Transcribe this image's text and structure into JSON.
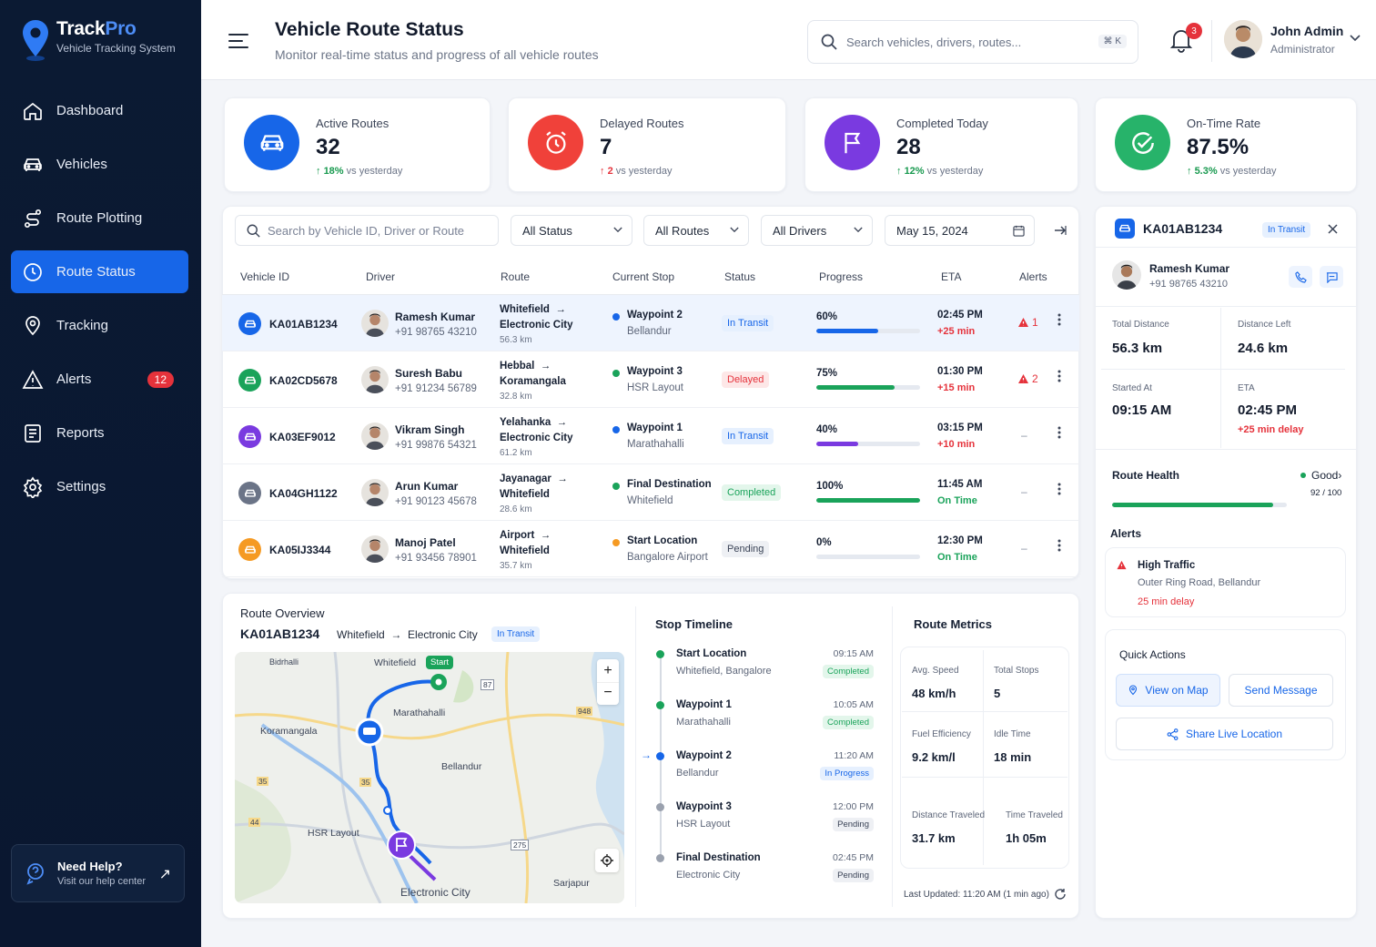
{
  "brand": {
    "name_a": "Track",
    "name_b": "Pro",
    "subtitle": "Vehicle Tracking System"
  },
  "nav": [
    {
      "label": "Dashboard",
      "icon": "home-icon"
    },
    {
      "label": "Vehicles",
      "icon": "car-icon"
    },
    {
      "label": "Route Plotting",
      "icon": "route-icon"
    },
    {
      "label": "Route Status",
      "icon": "clock-icon",
      "active": true
    },
    {
      "label": "Tracking",
      "icon": "location-icon"
    },
    {
      "label": "Alerts",
      "icon": "warning-icon",
      "badge": "12"
    },
    {
      "label": "Reports",
      "icon": "report-icon"
    },
    {
      "label": "Settings",
      "icon": "gear-icon"
    }
  ],
  "help": {
    "title": "Need Help?",
    "subtitle": "Visit our help center"
  },
  "header": {
    "title": "Vehicle Route Status",
    "subtitle": "Monitor real-time status and progress of all vehicle routes",
    "search_placeholder": "Search vehicles, drivers, routes...",
    "shortcut": "⌘ K",
    "notifications": "3"
  },
  "user": {
    "name": "John Admin",
    "role": "Administrator"
  },
  "stats": [
    {
      "label": "Active Routes",
      "value": "32",
      "trend": "18%",
      "trend_suffix": "vs yesterday",
      "color": "#1766e8"
    },
    {
      "label": "Delayed Routes",
      "value": "7",
      "trend": "2",
      "trend_suffix": "vs yesterday",
      "color": "#f0413a"
    },
    {
      "label": "Completed Today",
      "value": "28",
      "trend": "12%",
      "trend_suffix": "vs yesterday",
      "color": "#7a3ae0"
    },
    {
      "label": "On-Time Rate",
      "value": "87.5%",
      "trend": "5.3%",
      "trend_suffix": "vs yesterday",
      "color": "#27b36a"
    }
  ],
  "filters": {
    "search_placeholder": "Search by Vehicle ID, Driver or Route",
    "status": "All Status",
    "routes": "All Routes",
    "drivers": "All Drivers",
    "date": "May 15, 2024"
  },
  "columns": [
    "Vehicle ID",
    "Driver",
    "Route",
    "Current Stop",
    "Status",
    "Progress",
    "ETA",
    "Alerts"
  ],
  "rows": [
    {
      "id": "KA01AB1234",
      "color": "#1766e8",
      "driver": "Ramesh Kumar",
      "phone": "+91 98765 43210",
      "from": "Whitefield",
      "to": "Electronic City",
      "dist": "56.3 km",
      "stop": "Waypoint 2",
      "stop_sub": "Bellandur",
      "stop_color": "#1766e8",
      "status": "In Transit",
      "status_type": "transit",
      "progress": "60%",
      "progress_value": 60,
      "bar_color": "#1766e8",
      "eta": "02:45 PM",
      "eta_delta": "+25 min",
      "eta_color": "#e5323b",
      "alert": "1"
    },
    {
      "id": "KA02CD5678",
      "color": "#1aa35a",
      "driver": "Suresh Babu",
      "phone": "+91 91234 56789",
      "from": "Hebbal",
      "to": "Koramangala",
      "dist": "32.8 km",
      "stop": "Waypoint 3",
      "stop_sub": "HSR Layout",
      "stop_color": "#1aa35a",
      "status": "Delayed",
      "status_type": "delayed",
      "progress": "75%",
      "progress_value": 75,
      "bar_color": "#1aa35a",
      "eta": "01:30 PM",
      "eta_delta": "+15 min",
      "eta_color": "#e5323b",
      "alert": "2"
    },
    {
      "id": "KA03EF9012",
      "color": "#7a3ae0",
      "driver": "Vikram Singh",
      "phone": "+91 99876 54321",
      "from": "Yelahanka",
      "to": "Electronic City",
      "dist": "61.2 km",
      "stop": "Waypoint 1",
      "stop_sub": "Marathahalli",
      "stop_color": "#1766e8",
      "status": "In Transit",
      "status_type": "transit",
      "progress": "40%",
      "progress_value": 40,
      "bar_color": "#7a3ae0",
      "eta": "03:15 PM",
      "eta_delta": "+10 min",
      "eta_color": "#e5323b",
      "alert": "–"
    },
    {
      "id": "KA04GH1122",
      "color": "#6b7487",
      "driver": "Arun Kumar",
      "phone": "+91 90123 45678",
      "from": "Jayanagar",
      "to": "Whitefield",
      "dist": "28.6 km",
      "stop": "Final Destination",
      "stop_sub": "Whitefield",
      "stop_color": "#1aa35a",
      "status": "Completed",
      "status_type": "completed",
      "progress": "100%",
      "progress_value": 100,
      "bar_color": "#1aa35a",
      "eta": "11:45 AM",
      "eta_delta": "On Time",
      "eta_color": "#1aa35a",
      "alert": "–"
    },
    {
      "id": "KA05IJ3344",
      "color": "#f59a23",
      "driver": "Manoj Patel",
      "phone": "+91 93456 78901",
      "from": "Airport",
      "to": "Whitefield",
      "dist": "35.7 km",
      "stop": "Start Location",
      "stop_sub": "Bangalore Airport",
      "stop_color": "#f59a23",
      "status": "Pending",
      "status_type": "pending",
      "progress": "0%",
      "progress_value": 0,
      "bar_color": "#1766e8",
      "eta": "12:30 PM",
      "eta_delta": "On Time",
      "eta_color": "#1aa35a",
      "alert": "–"
    }
  ],
  "overview": {
    "title": "Route Overview",
    "vehicle": "KA01AB1234",
    "from": "Whitefield",
    "to": "Electronic City",
    "status": "In Transit"
  },
  "map": {
    "labels": [
      "Whitefield",
      "Marathahalli",
      "Koramangala",
      "Bellandur",
      "HSR Layout",
      "Electronic City",
      "Sarjapur",
      "Bidrhalli"
    ],
    "start": "Start",
    "roads": [
      "87",
      "948",
      "35",
      "44",
      "35",
      "275"
    ]
  },
  "timeline": {
    "title": "Stop Timeline",
    "stops": [
      {
        "name": "Start Location",
        "place": "Whitefield, Bangalore",
        "time": "09:15 AM",
        "status": "Completed",
        "type": "completed"
      },
      {
        "name": "Waypoint 1",
        "place": "Marathahalli",
        "time": "10:05 AM",
        "status": "Completed",
        "type": "completed"
      },
      {
        "name": "Waypoint 2",
        "place": "Bellandur",
        "time": "11:20 AM",
        "status": "In Progress",
        "type": "progress"
      },
      {
        "name": "Waypoint 3",
        "place": "HSR Layout",
        "time": "12:00 PM",
        "status": "Pending",
        "type": "pending"
      },
      {
        "name": "Final Destination",
        "place": "Electronic City",
        "time": "02:45 PM",
        "status": "Pending",
        "type": "pending"
      }
    ]
  },
  "metrics": {
    "title": "Route Metrics",
    "items": [
      {
        "label": "Avg. Speed",
        "value": "48 km/h"
      },
      {
        "label": "Total Stops",
        "value": "5"
      },
      {
        "label": "Fuel Efficiency",
        "value": "9.2 km/l"
      },
      {
        "label": "Idle Time",
        "value": "18 min"
      },
      {
        "label": "Distance Traveled",
        "value": "31.7 km"
      },
      {
        "label": "Time Traveled",
        "value": "1h 05m"
      }
    ],
    "updated": "Last Updated: 11:20 AM (1 min ago)"
  },
  "detail": {
    "vehicle": "KA01AB1234",
    "status": "In Transit",
    "driver": "Ramesh Kumar",
    "phone": "+91 98765 43210",
    "total_distance_label": "Total Distance",
    "total_distance": "56.3 km",
    "distance_left_label": "Distance Left",
    "distance_left": "24.6 km",
    "started_label": "Started At",
    "started": "09:15 AM",
    "eta_label": "ETA",
    "eta": "02:45 PM",
    "eta_delay": "+25 min delay",
    "health_label": "Route Health",
    "health_status": "Good",
    "health_score": "92 / 100",
    "health_value": 92,
    "alerts_label": "Alerts",
    "alert_title": "High Traffic",
    "alert_place": "Outer Ring Road, Bellandur",
    "alert_delay": "25 min delay",
    "actions_label": "Quick Actions",
    "view_map": "View on Map",
    "send_message": "Send Message",
    "share": "Share Live Location"
  }
}
